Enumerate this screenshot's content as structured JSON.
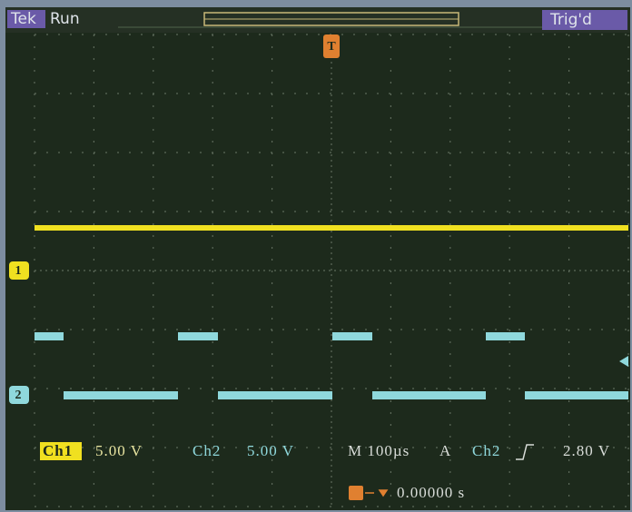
{
  "status_bar": {
    "brand": "Tek",
    "state": "Run",
    "trigger_status": "Trig'd"
  },
  "markers": {
    "ch1": "1",
    "ch2": "2",
    "trigger": "T"
  },
  "readout": {
    "ch1_label": "Ch1",
    "ch1_scale": "5.00 V",
    "ch2_label": "Ch2",
    "ch2_scale": "5.00 V",
    "timebase": "M 100µs",
    "trigger_mode": "A",
    "trigger_source": "Ch2",
    "trigger_level": "2.80 V",
    "trigger_offset": "0.00000 s"
  }
}
